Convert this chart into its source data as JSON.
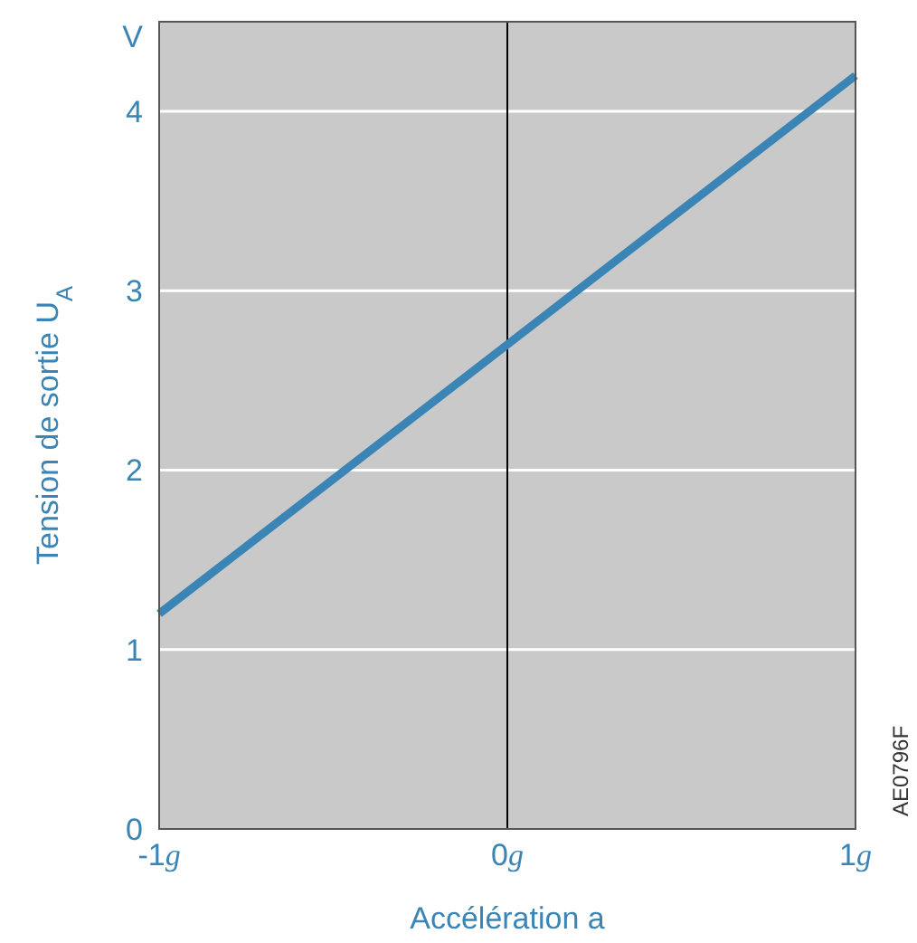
{
  "chart_data": {
    "type": "line",
    "xlabel": "Accélération a",
    "ylabel": "Tension de sortie U$_{A}$",
    "x": [
      -1,
      0,
      1
    ],
    "series": [
      {
        "color": "#3a85b5",
        "values": [
          1.2,
          2.7,
          4.2
        ]
      }
    ],
    "xlim": [
      -1,
      1
    ],
    "xticks": [
      {
        "value": -1,
        "label": "-1g"
      },
      {
        "value": 0,
        "label": "0g"
      },
      {
        "value": 1,
        "label": "1g"
      }
    ],
    "ylim": [
      0,
      4.5
    ],
    "yticks": [
      0,
      1,
      2,
      3,
      4,
      {
        "value": 4.42,
        "label": "V"
      }
    ],
    "grid": "y",
    "marker": "none",
    "line_style": "solid",
    "ref_lines": [
      {
        "axis": "x",
        "value": 0,
        "color": "#000000"
      }
    ],
    "annotations": [
      "AE0796F"
    ]
  }
}
